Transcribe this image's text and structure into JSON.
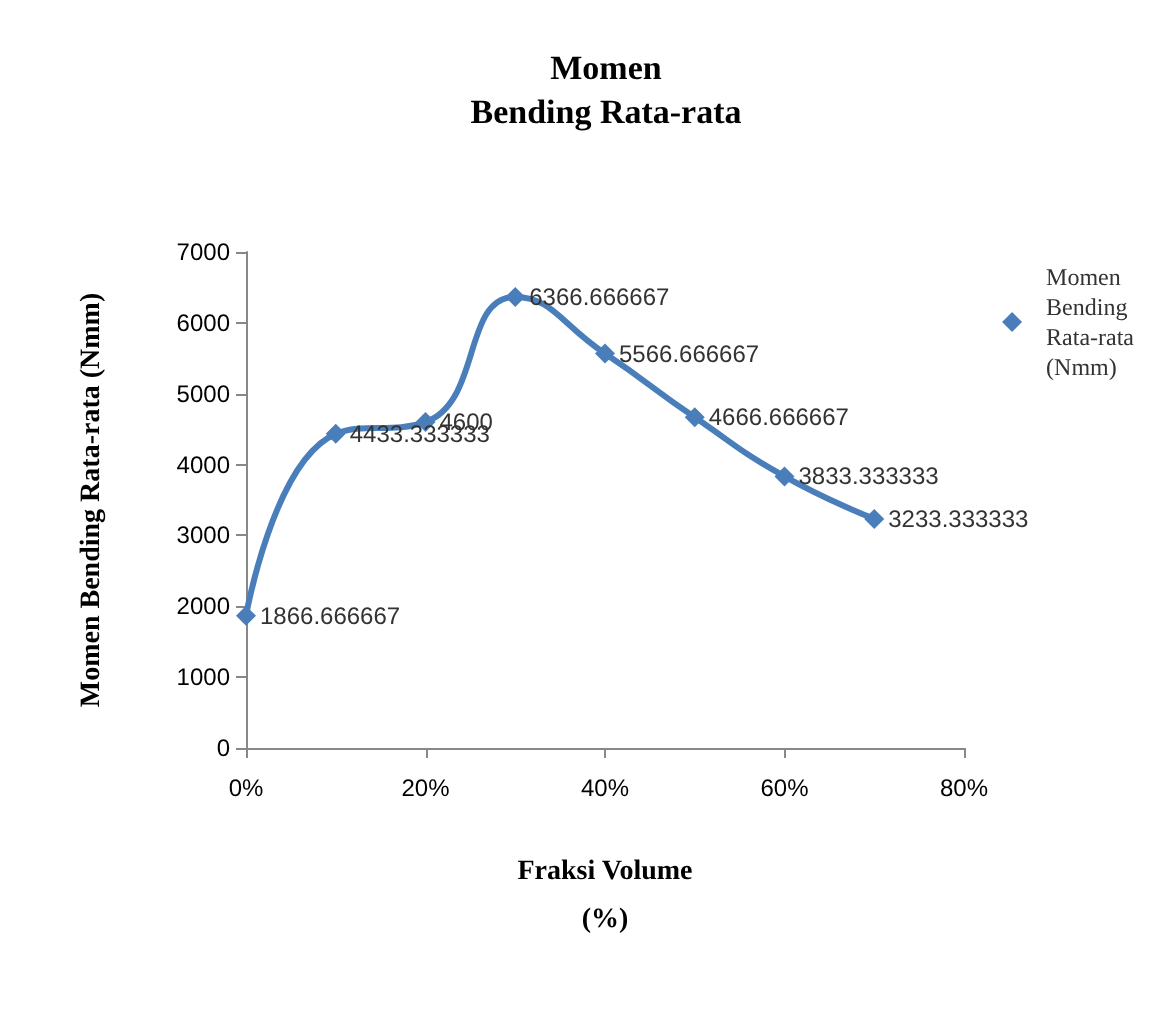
{
  "chart_data": {
    "type": "line",
    "title": "Momen\nBending Rata-rata",
    "xlabel": "Fraksi Volume\n(%)",
    "ylabel": "Momen Bending Rata-rata (Nmm)",
    "x": [
      0,
      10,
      20,
      30,
      40,
      50,
      60,
      70
    ],
    "series": [
      {
        "name": "Momen Bending Rata-rata (Nmm)",
        "color": "#4a7ebb",
        "values": [
          1866.666667,
          4433.333333,
          4600,
          6366.666667,
          5566.666667,
          4666.666667,
          3833.333333,
          3233.333333
        ]
      }
    ],
    "xlim": [
      0,
      80
    ],
    "xticks": [
      {
        "value": 0,
        "label": "0%"
      },
      {
        "value": 20,
        "label": "20%"
      },
      {
        "value": 40,
        "label": "40%"
      },
      {
        "value": 60,
        "label": "60%"
      },
      {
        "value": 80,
        "label": "80%"
      }
    ],
    "ylim": [
      0,
      7000
    ],
    "yticks": [
      0,
      1000,
      2000,
      3000,
      4000,
      5000,
      6000,
      7000
    ],
    "data_labels": true,
    "marker": "diamond",
    "line_style": "solid",
    "legend": "right",
    "grid": false
  }
}
